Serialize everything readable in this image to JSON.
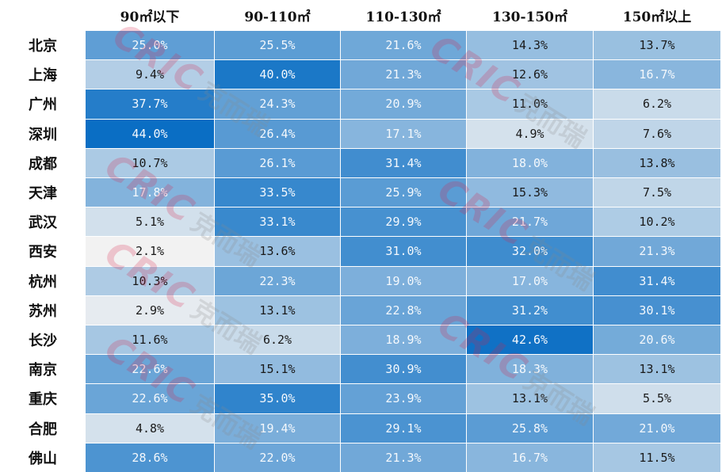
{
  "chart_data": {
    "type": "heatmap",
    "title": "",
    "columns": [
      "90㎡以下",
      "90-110㎡",
      "110-130㎡",
      "130-150㎡",
      "150㎡以上"
    ],
    "rows": [
      {
        "city": "北京",
        "values": [
          "25.0%",
          "25.5%",
          "21.6%",
          "14.3%",
          "13.7%"
        ]
      },
      {
        "city": "上海",
        "values": [
          "9.4%",
          "40.0%",
          "21.3%",
          "12.6%",
          "16.7%"
        ]
      },
      {
        "city": "广州",
        "values": [
          "37.7%",
          "24.3%",
          "20.9%",
          "11.0%",
          "6.2%"
        ]
      },
      {
        "city": "深圳",
        "values": [
          "44.0%",
          "26.4%",
          "17.1%",
          "4.9%",
          "7.6%"
        ]
      },
      {
        "city": "成都",
        "values": [
          "10.7%",
          "26.1%",
          "31.4%",
          "18.0%",
          "13.8%"
        ]
      },
      {
        "city": "天津",
        "values": [
          "17.8%",
          "33.5%",
          "25.9%",
          "15.3%",
          "7.5%"
        ]
      },
      {
        "city": "武汉",
        "values": [
          "5.1%",
          "33.1%",
          "29.9%",
          "21.7%",
          "10.2%"
        ]
      },
      {
        "city": "西安",
        "values": [
          "2.1%",
          "13.6%",
          "31.0%",
          "32.0%",
          "21.3%"
        ]
      },
      {
        "city": "杭州",
        "values": [
          "10.3%",
          "22.3%",
          "19.0%",
          "17.0%",
          "31.4%"
        ]
      },
      {
        "city": "苏州",
        "values": [
          "2.9%",
          "13.1%",
          "22.8%",
          "31.2%",
          "30.1%"
        ]
      },
      {
        "city": "长沙",
        "values": [
          "11.6%",
          "6.2%",
          "18.9%",
          "42.6%",
          "20.6%"
        ]
      },
      {
        "city": "南京",
        "values": [
          "22.6%",
          "15.1%",
          "30.9%",
          "18.3%",
          "13.1%"
        ]
      },
      {
        "city": "重庆",
        "values": [
          "22.6%",
          "35.0%",
          "23.9%",
          "13.1%",
          "5.5%"
        ]
      },
      {
        "city": "合肥",
        "values": [
          "4.8%",
          "19.4%",
          "29.1%",
          "25.8%",
          "21.0%"
        ]
      },
      {
        "city": "佛山",
        "values": [
          "28.6%",
          "22.0%",
          "21.3%",
          "16.7%",
          "11.5%"
        ]
      }
    ],
    "color_scale": {
      "low": "#f2f2f2",
      "high": "#0a6ec4"
    },
    "watermark": {
      "latin": "CRIC",
      "cjk": "克而瑞"
    }
  }
}
